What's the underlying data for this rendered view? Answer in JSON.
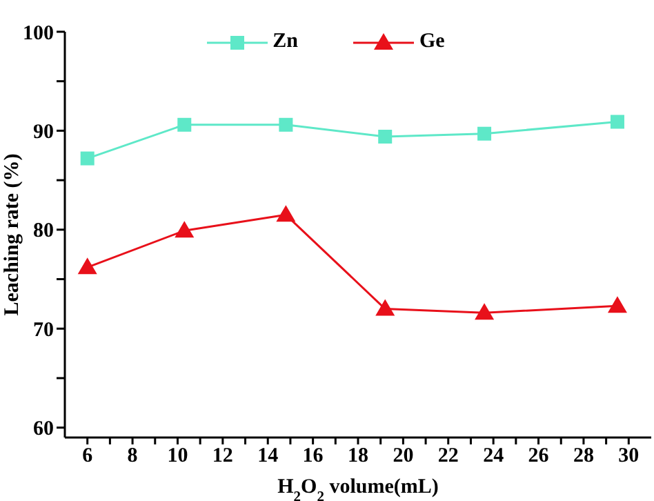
{
  "chart_data": {
    "type": "line",
    "xlabel": "H$_{2}$O$_{2}$ volume(mL)",
    "ylabel": "Leaching rate (%)",
    "x": [
      6,
      10.3,
      14.8,
      19.2,
      23.6,
      29.5
    ],
    "series": [
      {
        "name": "Zn",
        "color": "#5ee8c8",
        "marker": "square",
        "values": [
          87.2,
          90.6,
          90.6,
          89.4,
          89.7,
          90.9
        ]
      },
      {
        "name": "Ge",
        "color": "#e8101a",
        "marker": "triangle",
        "values": [
          76.2,
          79.9,
          81.5,
          72.0,
          71.6,
          72.3
        ]
      }
    ],
    "xlim": [
      5,
      31
    ],
    "xticks": [
      6,
      {
        "value": 7,
        "label": null
      },
      8,
      {
        "value": 9,
        "label": null
      },
      10,
      {
        "value": 11,
        "label": null
      },
      12,
      {
        "value": 13,
        "label": null
      },
      14,
      {
        "value": 15,
        "label": null
      },
      16,
      {
        "value": 17,
        "label": null
      },
      18,
      {
        "value": 19,
        "label": null
      },
      20,
      {
        "value": 21,
        "label": null
      },
      22,
      {
        "value": 23,
        "label": null
      },
      24,
      {
        "value": 25,
        "label": null
      },
      26,
      {
        "value": 27,
        "label": null
      },
      28,
      {
        "value": 29,
        "label": null
      },
      30
    ],
    "ylim": [
      59,
      100
    ],
    "yticks": [
      60,
      {
        "value": 65,
        "label": null
      },
      70,
      {
        "value": 75,
        "label": null
      },
      80,
      {
        "value": 85,
        "label": null
      },
      90,
      {
        "value": 95,
        "label": null
      },
      100
    ],
    "grid": false,
    "legend": "top",
    "line_style": "solid"
  }
}
